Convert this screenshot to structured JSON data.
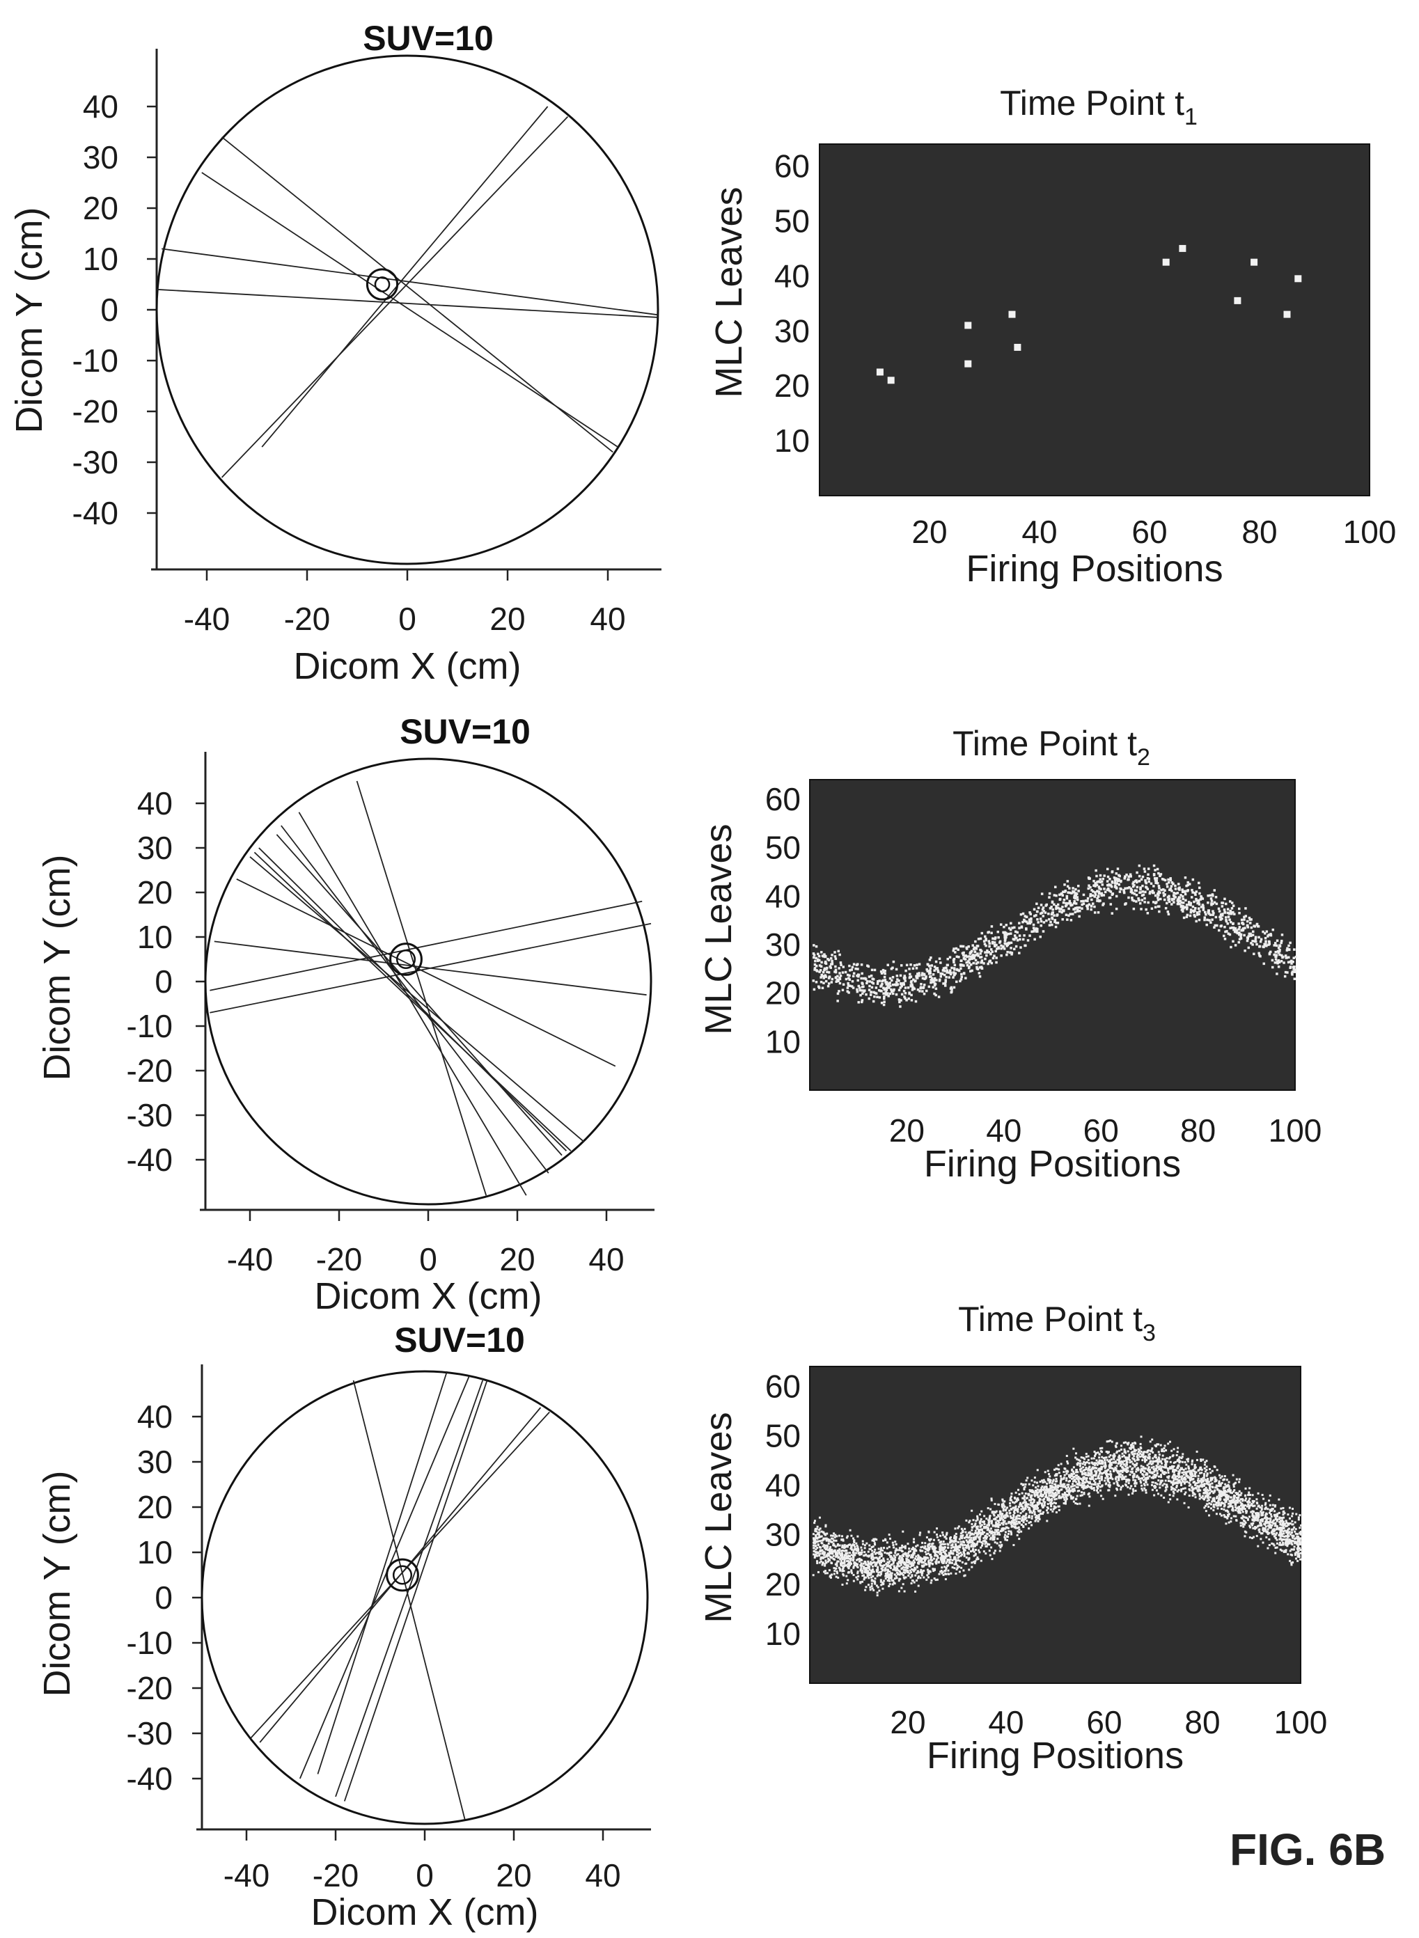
{
  "figure_label": "FIG. 6B",
  "chart_data": [
    {
      "type": "scatter",
      "panel": "geometry-1",
      "title": "SUV=10",
      "xlabel": "Dicom X (cm)",
      "ylabel": "Dicom Y (cm)",
      "xlim": [
        -50,
        50
      ],
      "ylim": [
        -50,
        50
      ],
      "xticks": [
        -40,
        -20,
        0,
        20,
        40
      ],
      "yticks": [
        40,
        30,
        20,
        10,
        0,
        -10,
        -20,
        -30,
        -40
      ],
      "field_of_view": {
        "center": [
          0,
          0
        ],
        "radius": 50
      },
      "target": {
        "center": [
          -5,
          5
        ],
        "radius_outer": 3,
        "radius_inner": 1.4
      },
      "lines_of_response": [
        [
          [
            28,
            40
          ],
          [
            -29,
            -27
          ]
        ],
        [
          [
            32,
            38
          ],
          [
            -37,
            -33
          ]
        ],
        [
          [
            -37,
            34
          ],
          [
            41,
            -28
          ]
        ],
        [
          [
            -41,
            27
          ],
          [
            42,
            -27
          ]
        ],
        [
          [
            -49,
            12
          ],
          [
            50,
            -1
          ]
        ],
        [
          [
            -50,
            4
          ],
          [
            50,
            -1.5
          ]
        ]
      ]
    },
    {
      "type": "heatmap",
      "panel": "sinogram-1",
      "title": "Time Point t",
      "title_subscript": "1",
      "xlabel": "Firing Positions",
      "ylabel": "MLC Leaves",
      "xlim": [
        0,
        100
      ],
      "ylim": [
        0,
        64
      ],
      "xticks": [
        20,
        40,
        60,
        80,
        100
      ],
      "yticks": [
        60,
        50,
        40,
        30,
        20,
        10
      ],
      "points": [
        [
          11,
          22.5
        ],
        [
          13,
          21
        ],
        [
          27,
          31
        ],
        [
          27,
          24
        ],
        [
          35,
          33
        ],
        [
          36,
          27
        ],
        [
          63,
          42.5
        ],
        [
          66,
          45
        ],
        [
          76,
          35.5
        ],
        [
          79,
          42.5
        ],
        [
          85,
          33
        ],
        [
          87,
          39.5
        ]
      ]
    },
    {
      "type": "scatter",
      "panel": "geometry-2",
      "title": "SUV=10",
      "xlabel": "Dicom X (cm)",
      "ylabel": "Dicom Y (cm)",
      "xlim": [
        -50,
        50
      ],
      "ylim": [
        -50,
        50
      ],
      "xticks": [
        -40,
        -20,
        0,
        20,
        40
      ],
      "yticks": [
        40,
        30,
        20,
        10,
        0,
        -10,
        -20,
        -30,
        -40
      ],
      "field_of_view": {
        "center": [
          0,
          0
        ],
        "radius": 50
      },
      "target": {
        "center": [
          -5,
          5
        ],
        "radius_outer": 3.5,
        "radius_inner": 2
      },
      "lines_of_response": [
        [
          [
            -16,
            45
          ],
          [
            13,
            -48
          ]
        ],
        [
          [
            -29,
            38
          ],
          [
            22,
            -48
          ]
        ],
        [
          [
            -33,
            35
          ],
          [
            27,
            -43
          ]
        ],
        [
          [
            -34,
            33
          ],
          [
            30,
            -39
          ]
        ],
        [
          [
            -38,
            30
          ],
          [
            31,
            -38
          ]
        ],
        [
          [
            -39,
            29
          ],
          [
            32,
            -38
          ]
        ],
        [
          [
            -40,
            28
          ],
          [
            35,
            -36
          ]
        ],
        [
          [
            -43,
            23
          ],
          [
            42,
            -19
          ]
        ],
        [
          [
            -48,
            9
          ],
          [
            49,
            -3
          ]
        ],
        [
          [
            -49,
            -2
          ],
          [
            48,
            18
          ]
        ],
        [
          [
            -49,
            -7
          ],
          [
            50,
            13
          ]
        ]
      ]
    },
    {
      "type": "heatmap",
      "panel": "sinogram-2",
      "title": "Time Point t",
      "title_subscript": "2",
      "xlabel": "Firing Positions",
      "ylabel": "MLC Leaves",
      "xlim": [
        0,
        100
      ],
      "ylim": [
        0,
        64
      ],
      "xticks": [
        20,
        40,
        60,
        80,
        100
      ],
      "yticks": [
        60,
        50,
        40,
        30,
        20,
        10
      ],
      "band": {
        "center_min": 22,
        "center_max": 42,
        "period": 100,
        "peak_x": 66,
        "half_width": 6,
        "density": "sparse"
      }
    },
    {
      "type": "scatter",
      "panel": "geometry-3",
      "title": "SUV=10",
      "xlabel": "Dicom X (cm)",
      "ylabel": "Dicom Y (cm)",
      "xlim": [
        -50,
        50
      ],
      "ylim": [
        -50,
        50
      ],
      "xticks": [
        -40,
        -20,
        0,
        20,
        40
      ],
      "yticks": [
        40,
        30,
        20,
        10,
        0,
        -10,
        -20,
        -30,
        -40
      ],
      "field_of_view": {
        "center": [
          0,
          0
        ],
        "radius": 50
      },
      "target": {
        "center": [
          -5,
          5
        ],
        "radius_outer": 3.5,
        "radius_inner": 2
      },
      "lines_of_response": [
        [
          [
            -16,
            48
          ],
          [
            9,
            -49
          ]
        ],
        [
          [
            5,
            50
          ],
          [
            -24,
            -39
          ]
        ],
        [
          [
            10,
            49
          ],
          [
            -28,
            -40
          ]
        ],
        [
          [
            13,
            48
          ],
          [
            -20,
            -44
          ]
        ],
        [
          [
            14,
            48
          ],
          [
            -18,
            -45
          ]
        ],
        [
          [
            26,
            42
          ],
          [
            -37,
            -32
          ]
        ],
        [
          [
            28,
            41
          ],
          [
            -39,
            -31
          ]
        ]
      ]
    },
    {
      "type": "heatmap",
      "panel": "sinogram-3",
      "title": "Time Point t",
      "title_subscript": "3",
      "xlabel": "Firing Positions",
      "ylabel": "MLC Leaves",
      "xlim": [
        0,
        100
      ],
      "ylim": [
        0,
        64
      ],
      "xticks": [
        20,
        40,
        60,
        80,
        100
      ],
      "yticks": [
        60,
        50,
        40,
        30,
        20,
        10
      ],
      "band": {
        "center_min": 24,
        "center_max": 44,
        "period": 100,
        "peak_x": 66,
        "half_width": 7,
        "density": "dense"
      }
    }
  ]
}
